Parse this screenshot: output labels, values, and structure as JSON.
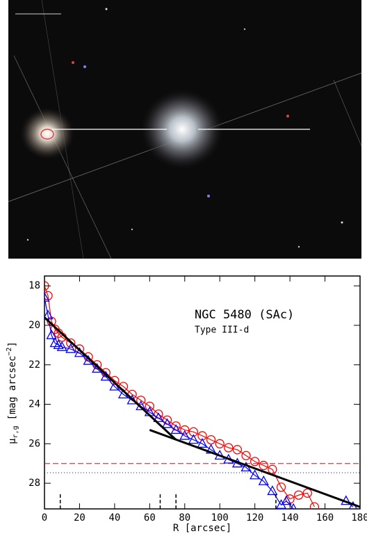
{
  "chart_data": {
    "type": "line",
    "annotation_title": "NGC 5480 (SAc)",
    "annotation_subtitle": "Type III-d",
    "x_label": "R [arcsec]",
    "y_label": {
      "symbol": "μ",
      "subscript": "r,g",
      "unit": "[mag arcsec",
      "exponent": "−2",
      "close": "]"
    },
    "xlim": [
      0,
      180
    ],
    "xticks": [
      0,
      20,
      40,
      60,
      80,
      100,
      120,
      140,
      160,
      180
    ],
    "ylim": [
      29.3,
      17.5
    ],
    "yticks": [
      18,
      20,
      22,
      24,
      26,
      28
    ],
    "series": [
      {
        "name": "r",
        "color": "#ff0000",
        "marker": "circle",
        "x": [
          0,
          2,
          4,
          6,
          8,
          10,
          15,
          20,
          25,
          30,
          35,
          40,
          45,
          50,
          55,
          60,
          65,
          70,
          75,
          80,
          85,
          90,
          95,
          100,
          105,
          110,
          115,
          120,
          125,
          130,
          135,
          140,
          145,
          150,
          154
        ],
        "values": [
          18.0,
          18.5,
          19.8,
          20.2,
          20.4,
          20.6,
          20.9,
          21.2,
          21.6,
          22.0,
          22.4,
          22.8,
          23.1,
          23.5,
          23.8,
          24.1,
          24.5,
          24.8,
          25.1,
          25.3,
          25.4,
          25.6,
          25.8,
          26.0,
          26.2,
          26.3,
          26.6,
          26.9,
          27.1,
          27.3,
          28.2,
          28.8,
          28.6,
          28.5,
          29.2
        ]
      },
      {
        "name": "g",
        "color": "#0000ff",
        "marker": "triangle",
        "x": [
          0,
          2,
          4,
          6,
          8,
          10,
          15,
          20,
          25,
          30,
          35,
          40,
          45,
          50,
          55,
          60,
          65,
          70,
          75,
          80,
          85,
          90,
          95,
          100,
          105,
          110,
          115,
          120,
          125,
          130,
          135,
          138,
          142,
          157,
          172,
          176
        ],
        "values": [
          18.6,
          19.5,
          20.5,
          20.9,
          21.0,
          21.1,
          21.2,
          21.4,
          21.8,
          22.2,
          22.6,
          23.1,
          23.5,
          23.8,
          24.1,
          24.4,
          24.7,
          25.0,
          25.3,
          25.6,
          25.8,
          26.0,
          26.3,
          26.6,
          26.8,
          27.0,
          27.2,
          27.6,
          27.9,
          28.4,
          29.1,
          28.9,
          29.3,
          null,
          28.9,
          29.2
        ]
      },
      {
        "name": "inner fit",
        "color": "#000000",
        "marker": "none",
        "x": [
          0,
          75
        ],
        "values": [
          19.6,
          25.8
        ]
      },
      {
        "name": "outer fit",
        "color": "#000000",
        "marker": "none",
        "x": [
          60,
          180
        ],
        "values": [
          25.3,
          29.2
        ]
      }
    ],
    "sky_levels": [
      {
        "band": "r",
        "color": "#ff0000",
        "style": "dashed",
        "value": 27.0
      },
      {
        "band": "g",
        "color": "#0000ff",
        "style": "dotted",
        "value": 27.47
      }
    ],
    "break_markers": [
      9,
      66,
      75,
      132
    ]
  }
}
